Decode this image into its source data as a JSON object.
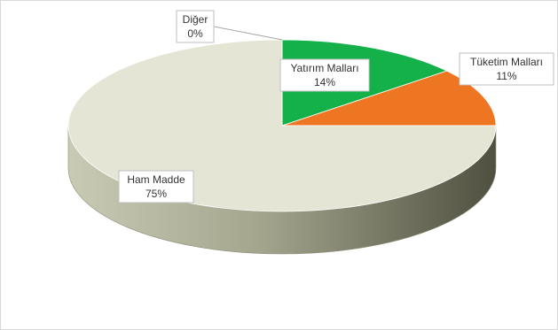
{
  "chart_data": {
    "type": "pie",
    "title": "",
    "legend": "none",
    "three_d": true,
    "slices": [
      {
        "label": "Diğer",
        "value": 0,
        "value_label": "0%",
        "color": "#c8a040"
      },
      {
        "label": "Yatırım Malları",
        "value": 14,
        "value_label": "14%",
        "color": "#14b14a"
      },
      {
        "label": "Tüketim Malları",
        "value": 11,
        "value_label": "11%",
        "color": "#ee7622"
      },
      {
        "label": "Ham Madde",
        "value": 75,
        "value_label": "75%",
        "color": "#e4e5d4"
      }
    ]
  }
}
